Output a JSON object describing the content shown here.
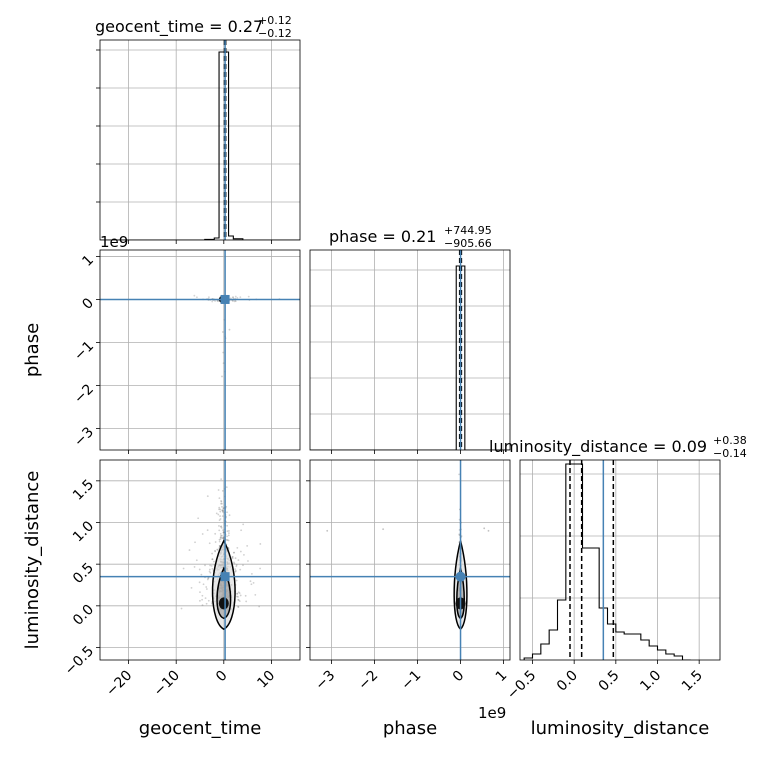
{
  "chart_data": {
    "type": "corner",
    "truth_color": "#4682b4",
    "parameters": [
      "geocent_time",
      "phase",
      "luminosity_distance"
    ],
    "axis_labels": {
      "x": [
        "geocent_time",
        "phase",
        "luminosity_distance"
      ],
      "y": [
        "phase",
        "luminosity_distance"
      ]
    },
    "titles": [
      {
        "param": "geocent_time",
        "main": "geocent_time = 0.27",
        "upper": "+0.12",
        "lower": "−0.12"
      },
      {
        "param": "phase",
        "main": "phase = 0.21",
        "upper": "+744.95",
        "lower": "−905.66"
      },
      {
        "param": "luminosity_distance",
        "main": "luminosity_distance = 0.09",
        "upper": "+0.38",
        "lower": "−0.14"
      }
    ],
    "offset_labels": {
      "phase_y": "1e9",
      "phase_x": "1e9"
    },
    "ranges": {
      "geocent_time": [
        -26,
        16
      ],
      "phase": [
        -3.5,
        1.15
      ],
      "luminosity_distance": [
        -0.65,
        1.75
      ]
    },
    "ticks": {
      "geocent_time": [
        -20,
        -10,
        0,
        10
      ],
      "phase": [
        -3,
        -2,
        -1,
        0,
        1
      ],
      "luminosity_distance": [
        -0.5,
        0.0,
        0.5,
        1.0,
        1.5
      ]
    },
    "tick_labels": {
      "geocent_time": [
        "−20",
        "−10",
        "0",
        "10"
      ],
      "phase": [
        "−3",
        "−2",
        "−1",
        "0",
        "1"
      ],
      "luminosity_distance": [
        "−0.5",
        "0.0",
        "0.5",
        "1.0",
        "1.5"
      ]
    },
    "truths": {
      "geocent_time": 0.27,
      "phase": 0.0,
      "luminosity_distance": 0.35
    },
    "quantiles": {
      "geocent_time": [
        0.15,
        0.27,
        0.39
      ],
      "phase": [
        -0.02,
        0.0,
        0.02
      ],
      "luminosity_distance": [
        -0.05,
        0.09,
        0.47
      ]
    },
    "hist_geocent_time": {
      "bin_edges": [
        -26,
        -24,
        -22,
        -20,
        -18,
        -16,
        -14,
        -12,
        -10,
        -8,
        -6,
        -4,
        -2,
        -1,
        0,
        1,
        2,
        4,
        6,
        8,
        10,
        12,
        14,
        16
      ],
      "counts": [
        0,
        0,
        0,
        0,
        0,
        0,
        0,
        0,
        0,
        0,
        0,
        0.003,
        0.01,
        0.94,
        0.94,
        0.02,
        0.006,
        0,
        0,
        0,
        0,
        0,
        0
      ]
    },
    "hist_phase": {
      "bin_edges": [
        -3.5,
        -0.1,
        0.1,
        1.15
      ],
      "counts": [
        0,
        0.92,
        0
      ]
    },
    "hist_luminosity_distance": {
      "bin_edges": [
        -0.6,
        -0.5,
        -0.4,
        -0.3,
        -0.2,
        -0.1,
        0.0,
        0.1,
        0.2,
        0.3,
        0.4,
        0.5,
        0.6,
        0.7,
        0.8,
        0.9,
        1.0,
        1.1,
        1.2,
        1.3,
        1.4
      ],
      "counts": [
        0.01,
        0.03,
        0.08,
        0.15,
        0.3,
        0.98,
        0.98,
        0.56,
        0.56,
        0.26,
        0.18,
        0.14,
        0.13,
        0.13,
        0.1,
        0.07,
        0.05,
        0.03,
        0.02,
        0
      ]
    }
  }
}
